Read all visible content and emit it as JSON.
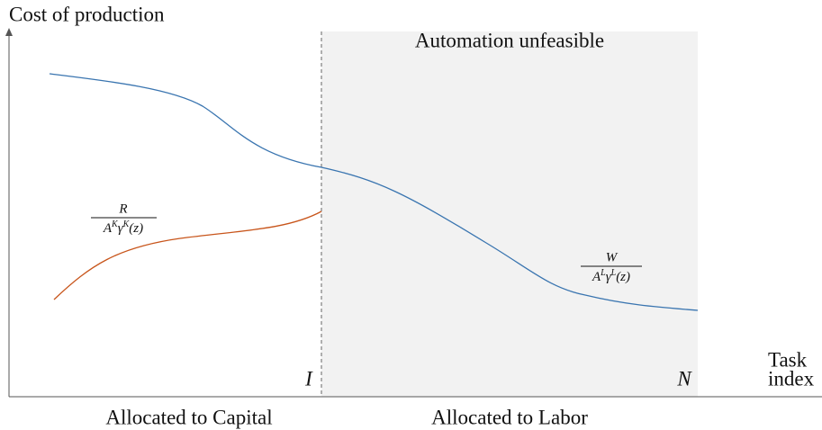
{
  "y_axis_label": "Cost of production",
  "region_label": "Automation unfeasible",
  "capital_cost": {
    "numerator": "R",
    "denominator": [
      "A",
      "K",
      "γ",
      "K",
      "(z)"
    ]
  },
  "labor_cost": {
    "numerator": "W",
    "denominator": [
      "A",
      "L",
      "γ",
      "L",
      "(z)"
    ]
  },
  "threshold_label": "I",
  "end_label": "N",
  "x_axis_label": [
    "Task",
    "index"
  ],
  "left_region_label": "Allocated to Capital",
  "right_region_label": "Allocated to Labor"
}
